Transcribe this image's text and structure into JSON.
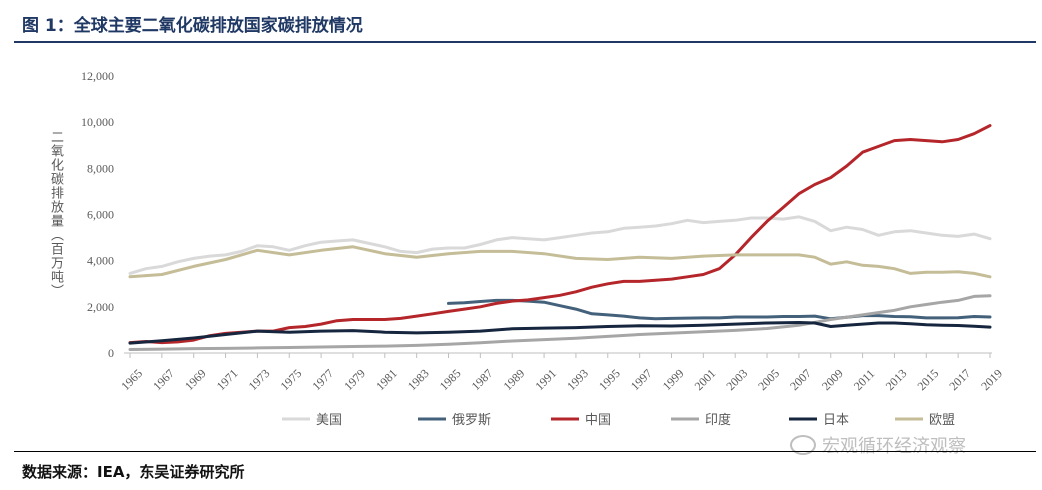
{
  "header": {
    "title": "图 1：全球主要二氧化碳排放国家碳排放情况"
  },
  "footer": {
    "source": "数据来源：IEA，东吴证券研究所"
  },
  "watermark": {
    "text": "宏观循环经济观察"
  },
  "chart_data": {
    "type": "line",
    "ylabel": "二氧化碳排放量（百万吨）",
    "ylim": [
      0,
      12000
    ],
    "yticks": [
      0,
      2000,
      4000,
      6000,
      8000,
      10000,
      12000
    ],
    "ytick_labels": [
      "0",
      "2,000",
      "4,000",
      "6,000",
      "8,000",
      "10,000",
      "12,000"
    ],
    "xlim": [
      1965,
      2019
    ],
    "xticks": [
      1965,
      1967,
      1969,
      1971,
      1973,
      1975,
      1977,
      1979,
      1981,
      1983,
      1985,
      1987,
      1989,
      1991,
      1993,
      1995,
      1997,
      1999,
      2001,
      2003,
      2005,
      2007,
      2009,
      2011,
      2013,
      2015,
      2017,
      2019
    ],
    "grid": false,
    "legend_position": "bottom",
    "series": [
      {
        "name": "美国",
        "color": "#d9d9d9",
        "points": [
          [
            1965,
            3450
          ],
          [
            1966,
            3650
          ],
          [
            1967,
            3750
          ],
          [
            1968,
            3950
          ],
          [
            1969,
            4100
          ],
          [
            1970,
            4200
          ],
          [
            1971,
            4250
          ],
          [
            1972,
            4400
          ],
          [
            1973,
            4650
          ],
          [
            1974,
            4600
          ],
          [
            1975,
            4450
          ],
          [
            1976,
            4650
          ],
          [
            1977,
            4800
          ],
          [
            1978,
            4850
          ],
          [
            1979,
            4900
          ],
          [
            1980,
            4750
          ],
          [
            1981,
            4600
          ],
          [
            1982,
            4400
          ],
          [
            1983,
            4350
          ],
          [
            1984,
            4500
          ],
          [
            1985,
            4550
          ],
          [
            1986,
            4550
          ],
          [
            1987,
            4700
          ],
          [
            1988,
            4900
          ],
          [
            1989,
            5000
          ],
          [
            1990,
            4950
          ],
          [
            1991,
            4900
          ],
          [
            1992,
            5000
          ],
          [
            1993,
            5100
          ],
          [
            1994,
            5200
          ],
          [
            1995,
            5250
          ],
          [
            1996,
            5400
          ],
          [
            1997,
            5450
          ],
          [
            1998,
            5500
          ],
          [
            1999,
            5600
          ],
          [
            2000,
            5750
          ],
          [
            2001,
            5650
          ],
          [
            2002,
            5700
          ],
          [
            2003,
            5750
          ],
          [
            2004,
            5850
          ],
          [
            2005,
            5850
          ],
          [
            2006,
            5800
          ],
          [
            2007,
            5900
          ],
          [
            2008,
            5700
          ],
          [
            2009,
            5300
          ],
          [
            2010,
            5450
          ],
          [
            2011,
            5350
          ],
          [
            2012,
            5100
          ],
          [
            2013,
            5250
          ],
          [
            2014,
            5300
          ],
          [
            2015,
            5200
          ],
          [
            2016,
            5100
          ],
          [
            2017,
            5050
          ],
          [
            2018,
            5150
          ],
          [
            2019,
            4950
          ]
        ]
      },
      {
        "name": "俄罗斯",
        "color": "#44617b",
        "points": [
          [
            1985,
            2150
          ],
          [
            1986,
            2180
          ],
          [
            1987,
            2230
          ],
          [
            1988,
            2280
          ],
          [
            1989,
            2280
          ],
          [
            1990,
            2250
          ],
          [
            1991,
            2200
          ],
          [
            1992,
            2050
          ],
          [
            1993,
            1900
          ],
          [
            1994,
            1700
          ],
          [
            1995,
            1650
          ],
          [
            1996,
            1600
          ],
          [
            1997,
            1520
          ],
          [
            1998,
            1480
          ],
          [
            1999,
            1500
          ],
          [
            2000,
            1510
          ],
          [
            2001,
            1520
          ],
          [
            2002,
            1520
          ],
          [
            2003,
            1560
          ],
          [
            2004,
            1560
          ],
          [
            2005,
            1560
          ],
          [
            2006,
            1580
          ],
          [
            2007,
            1580
          ],
          [
            2008,
            1600
          ],
          [
            2009,
            1480
          ],
          [
            2010,
            1550
          ],
          [
            2011,
            1620
          ],
          [
            2012,
            1620
          ],
          [
            2013,
            1580
          ],
          [
            2014,
            1570
          ],
          [
            2015,
            1520
          ],
          [
            2016,
            1520
          ],
          [
            2017,
            1530
          ],
          [
            2018,
            1580
          ],
          [
            2019,
            1560
          ]
        ]
      },
      {
        "name": "中国",
        "color": "#b5262b",
        "points": [
          [
            1965,
            450
          ],
          [
            1966,
            500
          ],
          [
            1967,
            450
          ],
          [
            1968,
            480
          ],
          [
            1969,
            560
          ],
          [
            1970,
            750
          ],
          [
            1971,
            850
          ],
          [
            1972,
            900
          ],
          [
            1973,
            950
          ],
          [
            1974,
            950
          ],
          [
            1975,
            1100
          ],
          [
            1976,
            1150
          ],
          [
            1977,
            1250
          ],
          [
            1978,
            1400
          ],
          [
            1979,
            1450
          ],
          [
            1980,
            1450
          ],
          [
            1981,
            1450
          ],
          [
            1982,
            1500
          ],
          [
            1983,
            1600
          ],
          [
            1984,
            1700
          ],
          [
            1985,
            1800
          ],
          [
            1986,
            1900
          ],
          [
            1987,
            2000
          ],
          [
            1988,
            2150
          ],
          [
            1989,
            2250
          ],
          [
            1990,
            2300
          ],
          [
            1991,
            2400
          ],
          [
            1992,
            2500
          ],
          [
            1993,
            2650
          ],
          [
            1994,
            2850
          ],
          [
            1995,
            3000
          ],
          [
            1996,
            3100
          ],
          [
            1997,
            3100
          ],
          [
            1998,
            3150
          ],
          [
            1999,
            3200
          ],
          [
            2000,
            3300
          ],
          [
            2001,
            3400
          ],
          [
            2002,
            3650
          ],
          [
            2003,
            4250
          ],
          [
            2004,
            5000
          ],
          [
            2005,
            5700
          ],
          [
            2006,
            6300
          ],
          [
            2007,
            6900
          ],
          [
            2008,
            7300
          ],
          [
            2009,
            7600
          ],
          [
            2010,
            8100
          ],
          [
            2011,
            8700
          ],
          [
            2012,
            8950
          ],
          [
            2013,
            9200
          ],
          [
            2014,
            9250
          ],
          [
            2015,
            9200
          ],
          [
            2016,
            9150
          ],
          [
            2017,
            9250
          ],
          [
            2018,
            9500
          ],
          [
            2019,
            9850
          ]
        ]
      },
      {
        "name": "印度",
        "color": "#a6a6a6",
        "points": [
          [
            1965,
            150
          ],
          [
            1967,
            170
          ],
          [
            1969,
            190
          ],
          [
            1971,
            200
          ],
          [
            1973,
            220
          ],
          [
            1975,
            240
          ],
          [
            1977,
            260
          ],
          [
            1979,
            280
          ],
          [
            1981,
            300
          ],
          [
            1983,
            330
          ],
          [
            1985,
            380
          ],
          [
            1987,
            440
          ],
          [
            1989,
            520
          ],
          [
            1991,
            580
          ],
          [
            1993,
            640
          ],
          [
            1995,
            720
          ],
          [
            1997,
            800
          ],
          [
            1999,
            860
          ],
          [
            2001,
            920
          ],
          [
            2003,
            980
          ],
          [
            2005,
            1060
          ],
          [
            2007,
            1200
          ],
          [
            2009,
            1450
          ],
          [
            2011,
            1650
          ],
          [
            2013,
            1850
          ],
          [
            2014,
            2000
          ],
          [
            2015,
            2100
          ],
          [
            2016,
            2200
          ],
          [
            2017,
            2280
          ],
          [
            2018,
            2450
          ],
          [
            2019,
            2480
          ]
        ]
      },
      {
        "name": "日本",
        "color": "#16263f",
        "points": [
          [
            1965,
            430
          ],
          [
            1967,
            530
          ],
          [
            1969,
            650
          ],
          [
            1971,
            800
          ],
          [
            1973,
            950
          ],
          [
            1975,
            900
          ],
          [
            1977,
            950
          ],
          [
            1979,
            970
          ],
          [
            1981,
            900
          ],
          [
            1983,
            870
          ],
          [
            1985,
            900
          ],
          [
            1987,
            950
          ],
          [
            1989,
            1050
          ],
          [
            1991,
            1080
          ],
          [
            1993,
            1100
          ],
          [
            1995,
            1150
          ],
          [
            1997,
            1180
          ],
          [
            1999,
            1170
          ],
          [
            2001,
            1200
          ],
          [
            2003,
            1250
          ],
          [
            2005,
            1300
          ],
          [
            2007,
            1320
          ],
          [
            2008,
            1300
          ],
          [
            2009,
            1150
          ],
          [
            2010,
            1200
          ],
          [
            2011,
            1250
          ],
          [
            2012,
            1300
          ],
          [
            2013,
            1300
          ],
          [
            2014,
            1270
          ],
          [
            2015,
            1220
          ],
          [
            2016,
            1200
          ],
          [
            2017,
            1190
          ],
          [
            2018,
            1160
          ],
          [
            2019,
            1120
          ]
        ]
      },
      {
        "name": "欧盟",
        "color": "#c4bd97",
        "points": [
          [
            1965,
            3300
          ],
          [
            1967,
            3400
          ],
          [
            1969,
            3750
          ],
          [
            1971,
            4050
          ],
          [
            1973,
            4450
          ],
          [
            1975,
            4250
          ],
          [
            1977,
            4450
          ],
          [
            1979,
            4600
          ],
          [
            1981,
            4300
          ],
          [
            1983,
            4150
          ],
          [
            1985,
            4300
          ],
          [
            1987,
            4400
          ],
          [
            1989,
            4400
          ],
          [
            1991,
            4300
          ],
          [
            1993,
            4100
          ],
          [
            1995,
            4050
          ],
          [
            1997,
            4150
          ],
          [
            1999,
            4100
          ],
          [
            2001,
            4200
          ],
          [
            2003,
            4250
          ],
          [
            2005,
            4250
          ],
          [
            2007,
            4250
          ],
          [
            2008,
            4150
          ],
          [
            2009,
            3850
          ],
          [
            2010,
            3950
          ],
          [
            2011,
            3800
          ],
          [
            2012,
            3750
          ],
          [
            2013,
            3650
          ],
          [
            2014,
            3450
          ],
          [
            2015,
            3500
          ],
          [
            2016,
            3500
          ],
          [
            2017,
            3520
          ],
          [
            2018,
            3450
          ],
          [
            2019,
            3300
          ]
        ]
      }
    ]
  }
}
